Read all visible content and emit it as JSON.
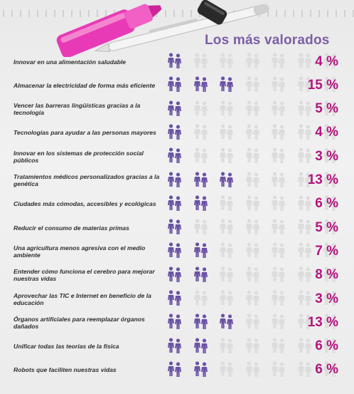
{
  "headline": "Los más valorados",
  "colors": {
    "figure_on": "#6a52a5",
    "figure_off": "#dcdcdc",
    "percent": "#b3147e",
    "headline": "#7a5ea8"
  },
  "icons": [
    "pink-highlighter-icon",
    "ballpoint-pen-icon",
    "person-pair-icon"
  ],
  "chart_data": {
    "type": "table",
    "title": "Los más valorados",
    "figures_total": 7,
    "rows": [
      {
        "label": "Innovar en una alimentación saludable",
        "value": 4,
        "display": "4 %",
        "figures_filled": 1
      },
      {
        "label": "Almacenar la electricidad de forma más eficiente",
        "value": 15,
        "display": "15 %",
        "figures_filled": 3
      },
      {
        "label": "Vencer las barreras lingüísticas gracias a la tecnología",
        "value": 5,
        "display": "5 %",
        "figures_filled": 1
      },
      {
        "label": "Tecnologías para ayudar a las personas mayores",
        "value": 4,
        "display": "4 %",
        "figures_filled": 1
      },
      {
        "label": "Innovar en los sistemas de protección social públicos",
        "value": 3,
        "display": "3 %",
        "figures_filled": 1
      },
      {
        "label": "Tratamientos médicos personalizados gracias a la genética",
        "value": 13,
        "display": "13 %",
        "figures_filled": 3
      },
      {
        "label": "Ciudades más cómodas, accesibles y ecológicas",
        "value": 6,
        "display": "6 %",
        "figures_filled": 2
      },
      {
        "label": "Reducir el consumo de materias primas",
        "value": 5,
        "display": "5 %",
        "figures_filled": 1
      },
      {
        "label": "Una agricultura menos agresiva con el medio ambiente",
        "value": 7,
        "display": "7 %",
        "figures_filled": 2
      },
      {
        "label": "Entender cómo funciona el cerebro para mejorar nuestras vidas",
        "value": 8,
        "display": "8 %",
        "figures_filled": 2
      },
      {
        "label": "Aprovechar las TIC e Internet en beneficio de la educación",
        "value": 3,
        "display": "3 %",
        "figures_filled": 1
      },
      {
        "label": "Órganos artificiales para reemplazar órganos dañados",
        "value": 13,
        "display": "13 %",
        "figures_filled": 3
      },
      {
        "label": "Unificar todas las teorías de la física",
        "value": 6,
        "display": "6 %",
        "figures_filled": 2
      },
      {
        "label": "Robots que faciliten nuestras vidas",
        "value": 6,
        "display": "6 %",
        "figures_filled": 2
      }
    ]
  }
}
